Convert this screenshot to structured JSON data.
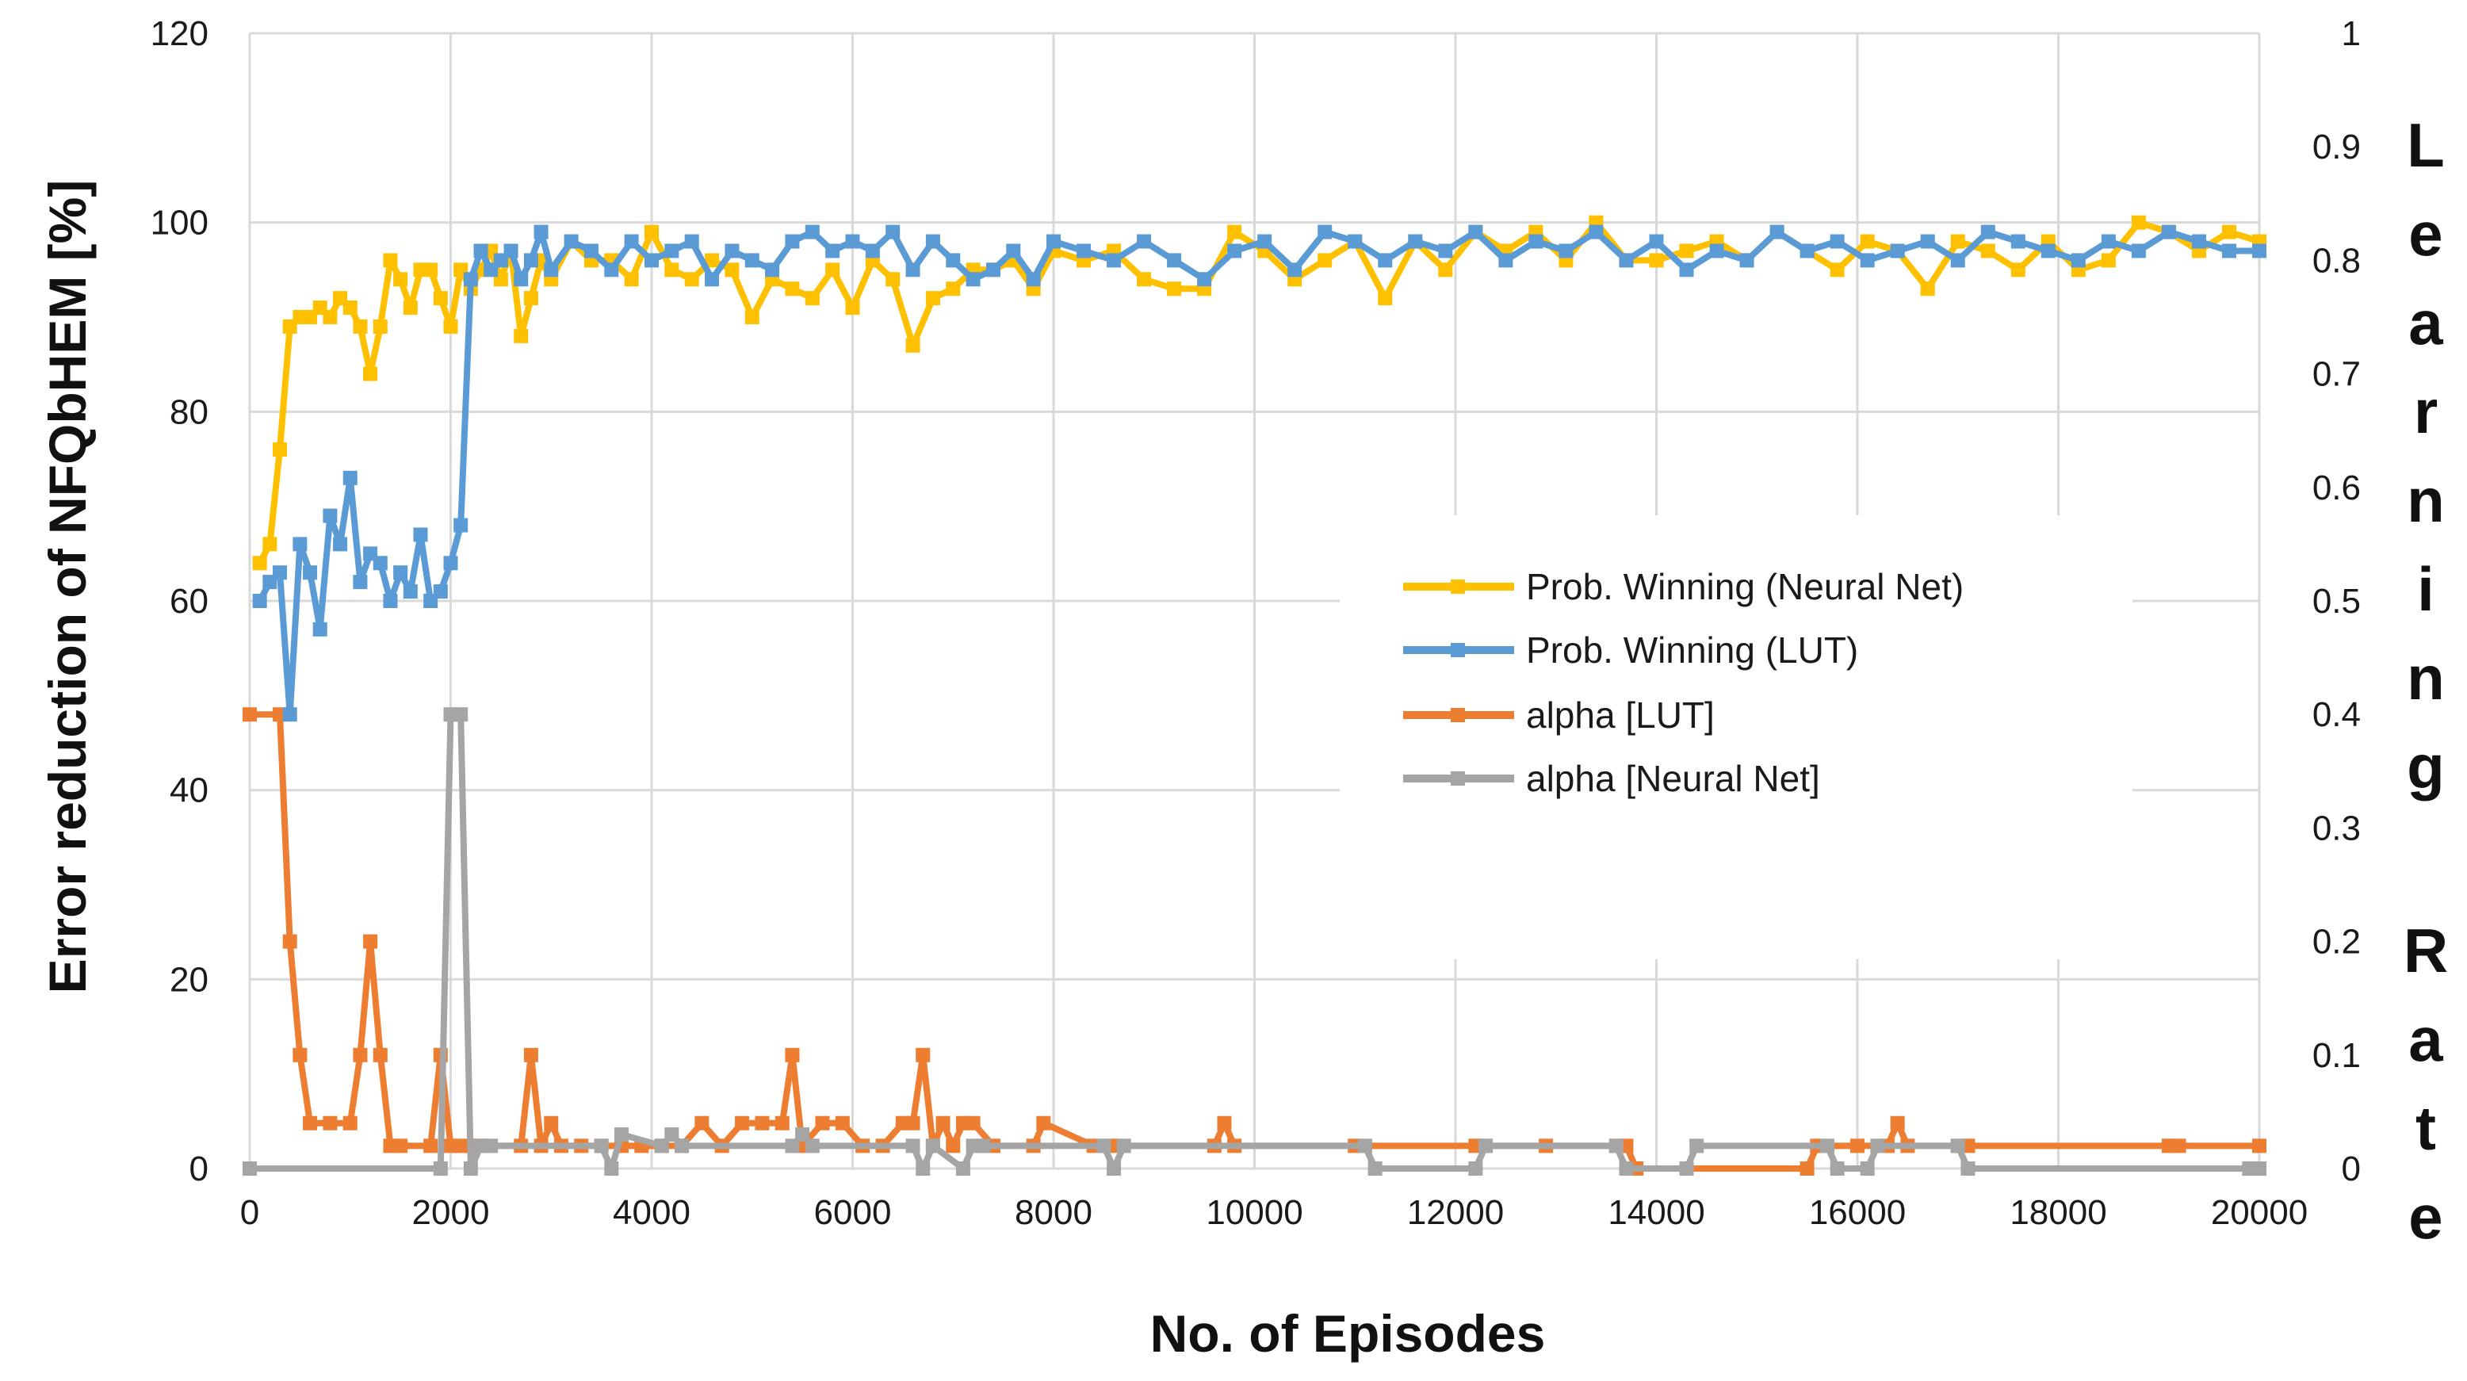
{
  "chart_data": {
    "type": "line",
    "title": "",
    "xlabel": "No. of Episodes",
    "ylabel": "Error reduction of NFQbHEM [%]",
    "y2label": "Learning Rate",
    "y2label_words": [
      "Learning",
      "Rate"
    ],
    "xlim": [
      0,
      20000
    ],
    "ylim": [
      0,
      120
    ],
    "y2lim": [
      0,
      1
    ],
    "x_ticks": [
      "0",
      "2000",
      "4000",
      "6000",
      "8000",
      "10000",
      "12000",
      "14000",
      "16000",
      "18000",
      "20000"
    ],
    "y_ticks": [
      "0",
      "20",
      "40",
      "60",
      "80",
      "100",
      "120"
    ],
    "y2_ticks": [
      "0",
      "0.1",
      "0.2",
      "0.3",
      "0.4",
      "0.5",
      "0.6",
      "0.7",
      "0.8",
      "0.9",
      "1"
    ],
    "grid": true,
    "legend_position": "center-right",
    "series": [
      {
        "name": "Prob. Winning (Neural Net)",
        "axis": "left",
        "color": "#FFC000",
        "x": [
          100,
          200,
          300,
          400,
          500,
          600,
          700,
          800,
          900,
          1000,
          1100,
          1200,
          1300,
          1400,
          1500,
          1600,
          1700,
          1800,
          1900,
          2000,
          2100,
          2200,
          2300,
          2400,
          2500,
          2600,
          2700,
          2800,
          2900,
          3000,
          3200,
          3400,
          3600,
          3800,
          4000,
          4200,
          4400,
          4600,
          4800,
          5000,
          5200,
          5400,
          5600,
          5800,
          6000,
          6200,
          6400,
          6600,
          6800,
          7000,
          7200,
          7400,
          7600,
          7800,
          8000,
          8300,
          8600,
          8900,
          9200,
          9500,
          9800,
          10100,
          10400,
          10700,
          11000,
          11300,
          11600,
          11900,
          12200,
          12500,
          12800,
          13100,
          13400,
          13700,
          14000,
          14300,
          14600,
          14900,
          15200,
          15500,
          15800,
          16100,
          16400,
          16700,
          17000,
          17300,
          17600,
          17900,
          18200,
          18500,
          18800,
          19100,
          19400,
          19700,
          20000
        ],
        "y": [
          64,
          66,
          76,
          89,
          90,
          90,
          91,
          90,
          92,
          91,
          89,
          84,
          89,
          96,
          94,
          91,
          95,
          95,
          92,
          89,
          95,
          93,
          95,
          97,
          94,
          97,
          88,
          92,
          96,
          94,
          98,
          96,
          96,
          94,
          99,
          95,
          94,
          96,
          95,
          90,
          94,
          93,
          92,
          95,
          91,
          96,
          94,
          87,
          92,
          93,
          95,
          95,
          96,
          93,
          97,
          96,
          97,
          94,
          93,
          93,
          99,
          97,
          94,
          96,
          98,
          92,
          98,
          95,
          99,
          97,
          99,
          96,
          100,
          96,
          96,
          97,
          98,
          96,
          99,
          97,
          95,
          98,
          97,
          93,
          98,
          97,
          95,
          98,
          95,
          96,
          100,
          99,
          97,
          99,
          98
        ]
      },
      {
        "name": "Prob. Winning (LUT)",
        "axis": "left",
        "color": "#5B9BD5",
        "x": [
          100,
          200,
          300,
          400,
          500,
          600,
          700,
          800,
          900,
          1000,
          1100,
          1200,
          1300,
          1400,
          1500,
          1600,
          1700,
          1800,
          1900,
          2000,
          2100,
          2200,
          2300,
          2400,
          2500,
          2600,
          2700,
          2800,
          2900,
          3000,
          3200,
          3400,
          3600,
          3800,
          4000,
          4200,
          4400,
          4600,
          4800,
          5000,
          5200,
          5400,
          5600,
          5800,
          6000,
          6200,
          6400,
          6600,
          6800,
          7000,
          7200,
          7400,
          7600,
          7800,
          8000,
          8300,
          8600,
          8900,
          9200,
          9500,
          9800,
          10100,
          10400,
          10700,
          11000,
          11300,
          11600,
          11900,
          12200,
          12500,
          12800,
          13100,
          13400,
          13700,
          14000,
          14300,
          14600,
          14900,
          15200,
          15500,
          15800,
          16100,
          16400,
          16700,
          17000,
          17300,
          17600,
          17900,
          18200,
          18500,
          18800,
          19100,
          19400,
          19700,
          20000
        ],
        "y": [
          60,
          62,
          63,
          48,
          66,
          63,
          57,
          69,
          66,
          73,
          62,
          65,
          64,
          60,
          63,
          61,
          67,
          60,
          61,
          64,
          68,
          94,
          97,
          95,
          96,
          97,
          94,
          96,
          99,
          95,
          98,
          97,
          95,
          98,
          96,
          97,
          98,
          94,
          97,
          96,
          95,
          98,
          99,
          97,
          98,
          97,
          99,
          95,
          98,
          96,
          94,
          95,
          97,
          94,
          98,
          97,
          96,
          98,
          96,
          94,
          97,
          98,
          95,
          99,
          98,
          96,
          98,
          97,
          99,
          96,
          98,
          97,
          99,
          96,
          98,
          95,
          97,
          96,
          99,
          97,
          98,
          96,
          97,
          98,
          96,
          99,
          98,
          97,
          96,
          98,
          97,
          99,
          98,
          97,
          97
        ]
      },
      {
        "name": "alpha [LUT]",
        "axis": "right",
        "color": "#ED7D31",
        "x": [
          0,
          300,
          400,
          500,
          600,
          800,
          1000,
          1100,
          1200,
          1300,
          1400,
          1500,
          1800,
          1900,
          2000,
          2100,
          2200,
          2300,
          2700,
          2800,
          2900,
          3000,
          3100,
          3300,
          3500,
          3700,
          3900,
          4100,
          4300,
          4500,
          4700,
          4900,
          5100,
          5300,
          5400,
          5500,
          5700,
          5900,
          6100,
          6300,
          6500,
          6600,
          6700,
          6800,
          6900,
          7000,
          7100,
          7200,
          7400,
          7800,
          7900,
          8400,
          8600,
          9600,
          9700,
          9800,
          11000,
          12200,
          12300,
          12900,
          13600,
          13700,
          13800,
          15500,
          15600,
          16000,
          16300,
          16400,
          16500,
          17000,
          17100,
          19100,
          19200,
          20000
        ],
        "y": [
          0.4,
          0.4,
          0.2,
          0.1,
          0.04,
          0.04,
          0.04,
          0.1,
          0.2,
          0.1,
          0.02,
          0.02,
          0.02,
          0.1,
          0.02,
          0.02,
          0.02,
          0.02,
          0.02,
          0.1,
          0.02,
          0.04,
          0.02,
          0.02,
          0.02,
          0.02,
          0.02,
          0.02,
          0.02,
          0.04,
          0.02,
          0.04,
          0.04,
          0.04,
          0.1,
          0.02,
          0.04,
          0.04,
          0.02,
          0.02,
          0.04,
          0.04,
          0.1,
          0.02,
          0.04,
          0.02,
          0.04,
          0.04,
          0.02,
          0.02,
          0.04,
          0.02,
          0.02,
          0.02,
          0.04,
          0.02,
          0.02,
          0.02,
          0.02,
          0.02,
          0.02,
          0.02,
          0.0,
          0.0,
          0.02,
          0.02,
          0.02,
          0.04,
          0.02,
          0.02,
          0.02,
          0.02,
          0.02,
          0.02
        ]
      },
      {
        "name": "alpha [Neural Net]",
        "axis": "right",
        "color": "#A5A5A5",
        "x": [
          0,
          1900,
          2000,
          2100,
          2200,
          2300,
          2400,
          3500,
          3600,
          3700,
          4100,
          4200,
          4300,
          5400,
          5500,
          5600,
          6600,
          6700,
          6800,
          7100,
          7200,
          7300,
          8500,
          8600,
          8700,
          11100,
          11200,
          12200,
          12300,
          13600,
          13700,
          14300,
          14400,
          15700,
          15800,
          16100,
          16200,
          17000,
          17100,
          19900,
          20000
        ],
        "y": [
          0.0,
          0.0,
          0.4,
          0.4,
          0.0,
          0.02,
          0.02,
          0.02,
          0.0,
          0.03,
          0.02,
          0.03,
          0.02,
          0.02,
          0.03,
          0.02,
          0.02,
          0.0,
          0.02,
          0.0,
          0.02,
          0.02,
          0.02,
          0.0,
          0.02,
          0.02,
          0.0,
          0.0,
          0.02,
          0.02,
          0.0,
          0.0,
          0.02,
          0.02,
          0.0,
          0.0,
          0.02,
          0.02,
          0.0,
          0.0,
          0.0
        ]
      }
    ]
  }
}
